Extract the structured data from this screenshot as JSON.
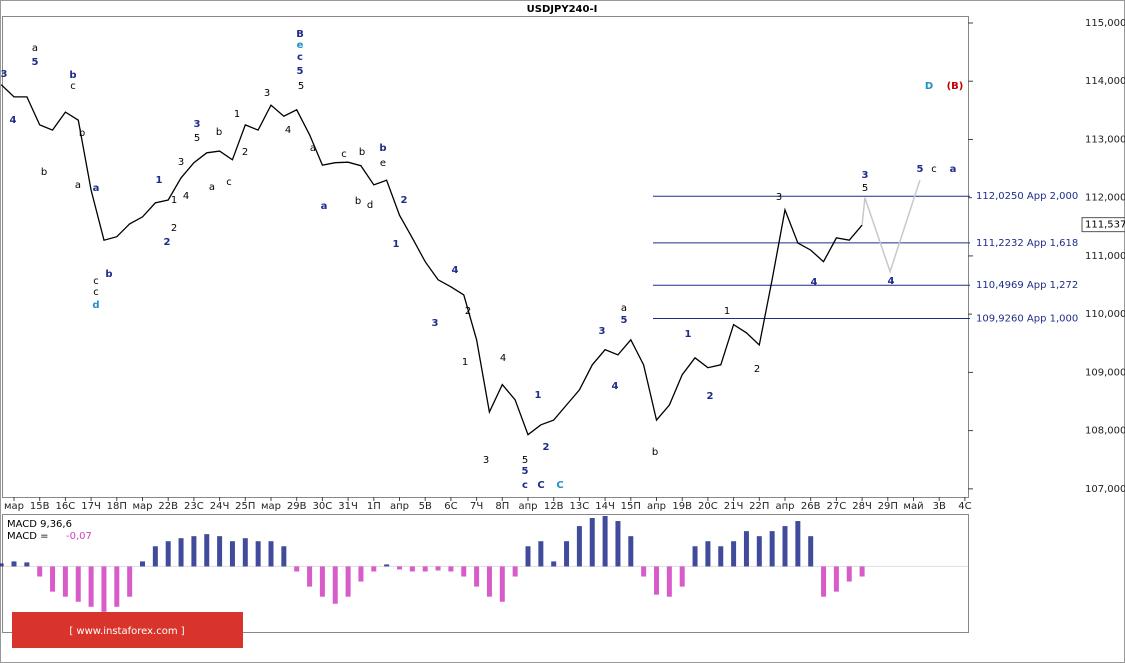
{
  "chart_data": {
    "type": "line",
    "title": "USDJPY240-I",
    "categories": [
      "мар",
      "15В",
      "16С",
      "17Ч",
      "18П",
      "мар",
      "22В",
      "23С",
      "24Ч",
      "25П",
      "мар",
      "29В",
      "30С",
      "31Ч",
      "1П",
      "апр",
      "5В",
      "6С",
      "7Ч",
      "8П",
      "апр",
      "12В",
      "13С",
      "14Ч",
      "15П",
      "апр",
      "19В",
      "20С",
      "21Ч",
      "22П",
      "апр",
      "26В",
      "27С",
      "28Ч",
      "29П",
      "май",
      "3В",
      "4С"
    ],
    "ylim": [
      106.86,
      115.12
    ],
    "yticks": [
      {
        "value": 115,
        "label": "115,000"
      },
      {
        "value": 114,
        "label": "114,000"
      },
      {
        "value": 113,
        "label": "113,000"
      },
      {
        "value": 112,
        "label": "112,000"
      },
      {
        "value": 111,
        "label": "111,000"
      },
      {
        "value": 110,
        "label": "110,000"
      },
      {
        "value": 109,
        "label": "109,000"
      },
      {
        "value": 108,
        "label": "108,000"
      },
      {
        "value": 107,
        "label": "107,000"
      }
    ],
    "last_price": {
      "value": 111.537,
      "label": "111,537"
    },
    "series": [
      {
        "name": "USDJPY240-I",
        "color": "#000000",
        "x": [
          -0.5,
          0,
          0.5,
          1,
          1.5,
          2,
          2.5,
          3,
          3.5,
          4,
          4.5,
          5,
          5.5,
          6,
          6.5,
          7,
          7.5,
          8,
          8.5,
          9,
          9.5,
          10,
          10.5,
          11,
          11.5,
          12,
          12.5,
          13,
          13.5,
          14,
          14.5,
          15,
          15.5,
          16,
          16.5,
          17,
          17.5,
          18,
          18.5,
          19,
          19.5,
          20,
          20.5,
          21,
          21.5,
          22,
          22.5,
          23,
          23.5,
          24,
          24.5,
          25,
          25.5,
          26,
          26.5,
          27,
          27.5,
          28,
          28.5,
          29,
          29.5,
          30,
          30.5,
          31,
          31.5,
          32,
          32.5,
          33
        ],
        "values": [
          113.94,
          113.73,
          113.73,
          113.25,
          113.16,
          113.47,
          113.33,
          112.13,
          111.27,
          111.33,
          111.55,
          111.67,
          111.91,
          111.96,
          112.34,
          112.6,
          112.77,
          112.8,
          112.65,
          113.25,
          113.16,
          113.59,
          113.4,
          113.51,
          113.08,
          112.56,
          112.6,
          112.61,
          112.55,
          112.22,
          112.3,
          111.7,
          111.31,
          110.9,
          110.59,
          110.47,
          110.33,
          109.56,
          108.32,
          108.79,
          108.53,
          107.93,
          108.1,
          108.18,
          108.44,
          108.7,
          109.13,
          109.39,
          109.3,
          109.56,
          109.13,
          108.18,
          108.44,
          108.96,
          109.25,
          109.08,
          109.13,
          109.82,
          109.68,
          109.47,
          110.59,
          111.79,
          111.22,
          111.1,
          110.9,
          111.31,
          111.27,
          111.53
        ]
      }
    ],
    "projection": {
      "color": "#c8c8c8",
      "x": [
        33,
        33.11,
        34.09,
        35.25
      ],
      "values": [
        111.53,
        112.0,
        110.73,
        112.3
      ]
    },
    "levels": [
      {
        "value": 112.025,
        "label": "112,0250 App 2,000"
      },
      {
        "value": 111.2232,
        "label": "111,2232 App 1,618"
      },
      {
        "value": 110.4969,
        "label": "110,4969 App 1,272"
      },
      {
        "value": 109.926,
        "label": "109,9260 App 1,000"
      }
    ],
    "level_color": "#1f2d8a",
    "annotations": [
      {
        "text": "a",
        "color": "#000000"
      },
      {
        "text": "5",
        "color": "#1f2d8a"
      },
      {
        "text": "3",
        "color": "#1f2d8a"
      },
      {
        "text": "4",
        "color": "#1f2d8a"
      },
      {
        "text": "b",
        "color": "#1f2d8a"
      },
      {
        "text": "c",
        "color": "#000000"
      },
      {
        "text": "b",
        "color": "#000000"
      },
      {
        "text": "b",
        "color": "#000000"
      },
      {
        "text": "a",
        "color": "#000000"
      },
      {
        "text": "a",
        "color": "#1f2d8a"
      },
      {
        "text": "b",
        "color": "#1f2d8a"
      },
      {
        "text": "c",
        "color": "#000000"
      },
      {
        "text": "c",
        "color": "#000000"
      },
      {
        "text": "d",
        "color": "#1e90c8"
      },
      {
        "text": "1",
        "color": "#1f2d8a"
      },
      {
        "text": "2",
        "color": "#1f2d8a"
      },
      {
        "text": "1",
        "color": "#000000"
      },
      {
        "text": "3",
        "color": "#000000"
      },
      {
        "text": "2",
        "color": "#000000"
      },
      {
        "text": "4",
        "color": "#000000"
      },
      {
        "text": "3",
        "color": "#1f2d8a"
      },
      {
        "text": "5",
        "color": "#000000"
      },
      {
        "text": "a",
        "color": "#000000"
      },
      {
        "text": "b",
        "color": "#000000"
      },
      {
        "text": "c",
        "color": "#000000"
      },
      {
        "text": "1",
        "color": "#000000"
      },
      {
        "text": "2",
        "color": "#000000"
      },
      {
        "text": "3",
        "color": "#000000"
      },
      {
        "text": "4",
        "color": "#000000"
      },
      {
        "text": "B",
        "color": "#1f2d8a"
      },
      {
        "text": "e",
        "color": "#1e90c8"
      },
      {
        "text": "c",
        "color": "#1f2d8a"
      },
      {
        "text": "5",
        "color": "#1f2d8a"
      },
      {
        "text": "5",
        "color": "#000000"
      },
      {
        "text": "a",
        "color": "#000000"
      },
      {
        "text": "a",
        "color": "#1f2d8a"
      },
      {
        "text": "c",
        "color": "#000000"
      },
      {
        "text": "b",
        "color": "#000000"
      },
      {
        "text": "b",
        "color": "#000000"
      },
      {
        "text": "d",
        "color": "#000000"
      },
      {
        "text": "b",
        "color": "#1f2d8a"
      },
      {
        "text": "e",
        "color": "#000000"
      },
      {
        "text": "2",
        "color": "#1f2d8a"
      },
      {
        "text": "1",
        "color": "#1f2d8a"
      },
      {
        "text": "4",
        "color": "#1f2d8a"
      },
      {
        "text": "3",
        "color": "#1f2d8a"
      },
      {
        "text": "2",
        "color": "#000000"
      },
      {
        "text": "1",
        "color": "#000000"
      },
      {
        "text": "4",
        "color": "#000000"
      },
      {
        "text": "3",
        "color": "#000000"
      },
      {
        "text": "5",
        "color": "#000000"
      },
      {
        "text": "5",
        "color": "#1f2d8a"
      },
      {
        "text": "1",
        "color": "#1f2d8a"
      },
      {
        "text": "2",
        "color": "#1f2d8a"
      },
      {
        "text": "c",
        "color": "#1f2d8a"
      },
      {
        "text": "C",
        "color": "#1f2d8a"
      },
      {
        "text": "C",
        "color": "#1e90c8"
      },
      {
        "text": "3",
        "color": "#1f2d8a"
      },
      {
        "text": "a",
        "color": "#000000"
      },
      {
        "text": "5",
        "color": "#1f2d8a"
      },
      {
        "text": "4",
        "color": "#1f2d8a"
      },
      {
        "text": "b",
        "color": "#000000"
      },
      {
        "text": "1",
        "color": "#1f2d8a"
      },
      {
        "text": "2",
        "color": "#1f2d8a"
      },
      {
        "text": "1",
        "color": "#000000"
      },
      {
        "text": "2",
        "color": "#000000"
      },
      {
        "text": "3",
        "color": "#000000"
      },
      {
        "text": "4",
        "color": "#1f2d8a"
      },
      {
        "text": "3",
        "color": "#1f2d8a"
      },
      {
        "text": "5",
        "color": "#000000"
      },
      {
        "text": "4",
        "color": "#1f2d8a"
      },
      {
        "text": "5",
        "color": "#1f2d8a"
      },
      {
        "text": "c",
        "color": "#000000"
      },
      {
        "text": "a",
        "color": "#1f2d8a"
      },
      {
        "text": "D",
        "color": "#1e90c8"
      },
      {
        "text": "(B)",
        "color": "#c00000"
      }
    ],
    "macd": {
      "title": "MACD 9,36,6",
      "value_prefix": "MACD =",
      "value": {
        "value": -0.07,
        "label": "-0,07"
      },
      "ylim": [
        -0.65,
        0.5
      ],
      "positive_color": "#1f2d8a",
      "negative_color": "#d040c0",
      "values": [
        0.03,
        0.05,
        0.04,
        -0.1,
        -0.25,
        -0.3,
        -0.35,
        -0.4,
        -0.45,
        -0.4,
        -0.3,
        0.05,
        0.2,
        0.25,
        0.28,
        0.3,
        0.32,
        0.3,
        0.25,
        0.28,
        0.25,
        0.25,
        0.2,
        -0.05,
        -0.2,
        -0.3,
        -0.37,
        -0.3,
        -0.15,
        -0.05,
        0.02,
        -0.03,
        -0.05,
        -0.05,
        -0.04,
        -0.05,
        -0.1,
        -0.2,
        -0.3,
        -0.35,
        -0.1,
        0.2,
        0.25,
        0.05,
        0.25,
        0.4,
        0.48,
        0.5,
        0.45,
        0.3,
        -0.1,
        -0.28,
        -0.3,
        -0.2,
        0.2,
        0.25,
        0.2,
        0.25,
        0.35,
        0.3,
        0.35,
        0.4,
        0.45,
        0.3,
        -0.3,
        -0.25,
        -0.15,
        -0.1
      ]
    },
    "watermark": "[ www.instaforex.com ]"
  }
}
